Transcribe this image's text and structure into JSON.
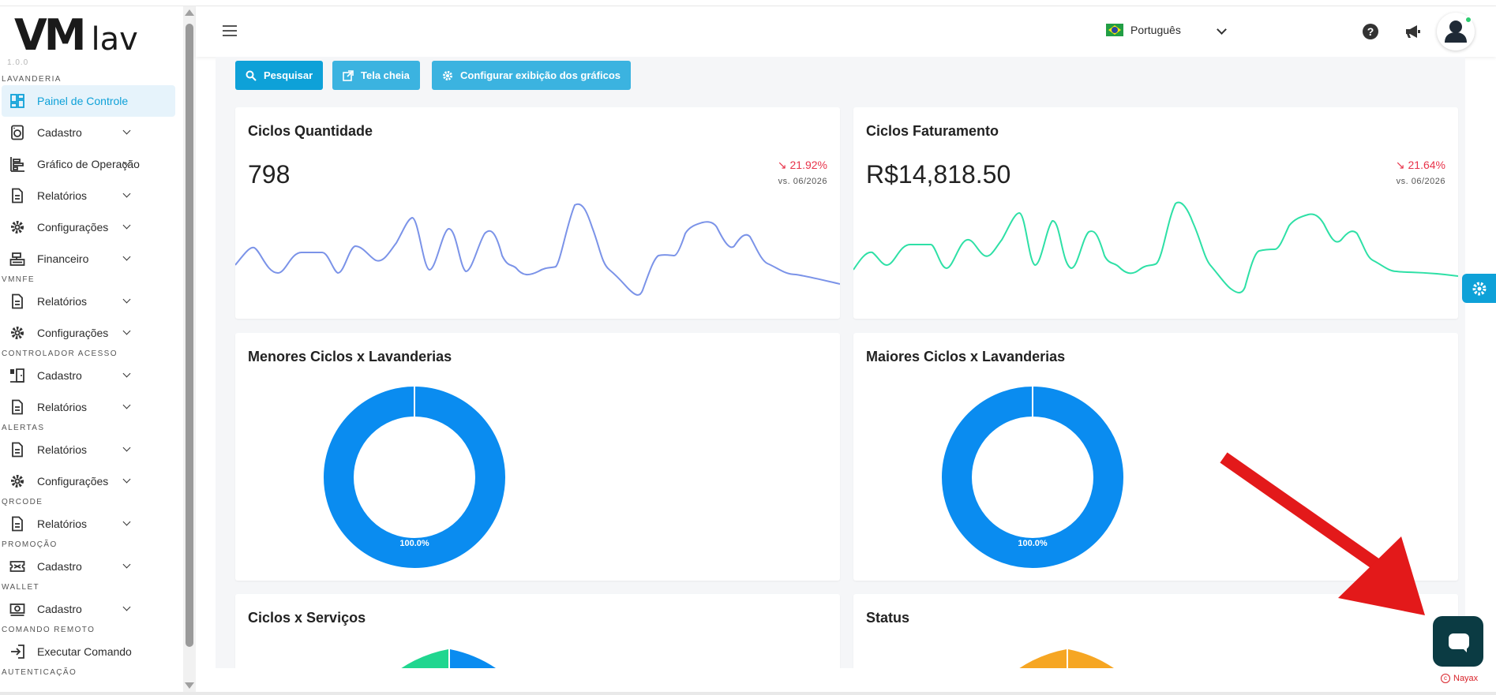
{
  "app": {
    "logo_vm": "VM",
    "logo_lav": "lav",
    "version": "1.0.0"
  },
  "sidebar": {
    "sections": [
      {
        "title": "LAVANDERIA",
        "items": [
          {
            "label": "Painel de Controle",
            "icon": "dashboard-icon",
            "active": true
          },
          {
            "label": "Cadastro",
            "icon": "washer-icon"
          },
          {
            "label": "Gráfico de Operação",
            "icon": "bar-chart-icon"
          },
          {
            "label": "Relatórios",
            "icon": "document-icon"
          },
          {
            "label": "Configurações",
            "icon": "gear-icon"
          },
          {
            "label": "Financeiro",
            "icon": "cash-register-icon"
          }
        ]
      },
      {
        "title": "VMNFE",
        "items": [
          {
            "label": "Relatórios",
            "icon": "document-icon"
          },
          {
            "label": "Configurações",
            "icon": "gear-icon"
          }
        ]
      },
      {
        "title": "CONTROLADOR ACESSO",
        "items": [
          {
            "label": "Cadastro",
            "icon": "door-icon"
          },
          {
            "label": "Relatórios",
            "icon": "document-icon"
          }
        ]
      },
      {
        "title": "ALERTAS",
        "items": [
          {
            "label": "Relatórios",
            "icon": "document-icon"
          },
          {
            "label": "Configurações",
            "icon": "gear-icon"
          }
        ]
      },
      {
        "title": "QRCODE",
        "items": [
          {
            "label": "Relatórios",
            "icon": "document-icon"
          }
        ]
      },
      {
        "title": "PROMOÇÃO",
        "items": [
          {
            "label": "Cadastro",
            "icon": "ticket-icon"
          }
        ]
      },
      {
        "title": "WALLET",
        "items": [
          {
            "label": "Cadastro",
            "icon": "money-icon"
          }
        ]
      },
      {
        "title": "COMANDO REMOTO",
        "items": [
          {
            "label": "Executar Comando",
            "icon": "sign-in-icon",
            "nochev": true
          }
        ]
      },
      {
        "title": "AUTENTICAÇÃO",
        "items": []
      }
    ]
  },
  "topbar": {
    "language": "Português"
  },
  "toolbar": {
    "search_label": "Pesquisar",
    "fullscreen_label": "Tela cheia",
    "config_label": "Configurar exibição dos gráficos"
  },
  "cards": {
    "ciclos_qtd": {
      "title": "Ciclos Quantidade",
      "value": "798",
      "change": "↘ 21.92%",
      "compare": "vs. 06/2026",
      "color": "#7b93e8"
    },
    "ciclos_fat": {
      "title": "Ciclos Faturamento",
      "value": "R$14,818.50",
      "change": "↘ 21.64%",
      "compare": "vs. 06/2026",
      "color": "#2ee0a6"
    },
    "menores": {
      "title": "Menores Ciclos x Lavanderias",
      "donut_label": "100.0%"
    },
    "maiores": {
      "title": "Maiores Ciclos x Lavanderias",
      "donut_label": "100.0%"
    },
    "servicos": {
      "title": "Ciclos x Serviços"
    },
    "status": {
      "title": "Status"
    }
  },
  "footer": {
    "brand": "Nayax"
  },
  "colors": {
    "accent": "#0ea1d8",
    "donut_blue": "#0a8cf0",
    "negative": "#e8334a",
    "status_orange": "#f6a623",
    "servicos_green": "#20d68f",
    "arrow_red": "#e3191a"
  }
}
